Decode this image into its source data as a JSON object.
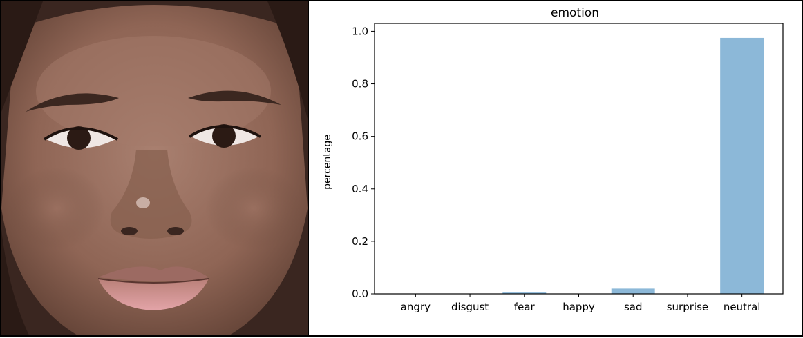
{
  "colors": {
    "bar": "#8cb8d8",
    "axis": "#000000",
    "background": "#ffffff",
    "frame": "#000000"
  },
  "photo": {
    "subject": "face-photo"
  },
  "chart_data": {
    "type": "bar",
    "title": "emotion",
    "xlabel": "",
    "ylabel": "percentage",
    "categories": [
      "angry",
      "disgust",
      "fear",
      "happy",
      "sad",
      "surprise",
      "neutral"
    ],
    "values": [
      0.0,
      0.0,
      0.005,
      0.0,
      0.02,
      0.0,
      0.975
    ],
    "ylim": [
      0,
      1.03
    ],
    "yticks": [
      0.0,
      0.2,
      0.4,
      0.6,
      0.8,
      1.0
    ],
    "ytick_labels": [
      "0.0",
      "0.2",
      "0.4",
      "0.6",
      "0.8",
      "1.0"
    ],
    "grid": false,
    "legend": "none"
  }
}
